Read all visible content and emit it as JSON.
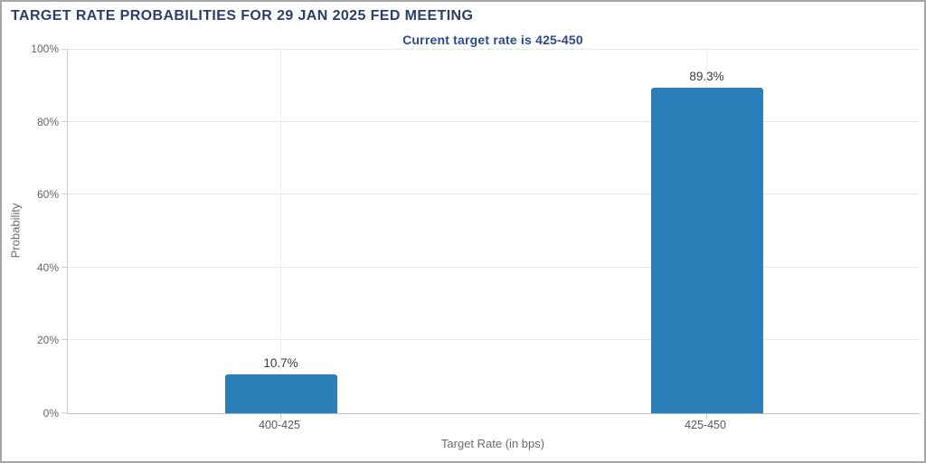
{
  "chart_data": {
    "type": "bar",
    "title": "TARGET RATE PROBABILITIES FOR 29 JAN 2025 FED MEETING",
    "subtitle": "Current target rate is 425-450",
    "xlabel": "Target Rate (in bps)",
    "ylabel": "Probability",
    "categories": [
      "400-425",
      "425-450"
    ],
    "values": [
      10.7,
      89.3
    ],
    "value_labels": [
      "10.7%",
      "89.3%"
    ],
    "ylim": [
      0,
      100
    ],
    "yticks": [
      0,
      20,
      40,
      60,
      80,
      100
    ],
    "ytick_labels": [
      "0%",
      "20%",
      "40%",
      "60%",
      "80%",
      "100%"
    ],
    "legend": "none",
    "grid": "horizontal lines every 20%; one vertical line at each category center",
    "bar_color": "#2b80b9"
  },
  "colors": {
    "title": "#2c3e6e",
    "subtitle": "#2c4b8d",
    "bar": "#2b80b9",
    "value_label": "#3a3a3a",
    "tick_label": "#666666",
    "axis_title": "#6b6b6b",
    "gridline": "#e9e9e9",
    "axis_line": "#bdbdbd",
    "frame_border": "#a5a5a5",
    "background": "#ffffff"
  }
}
